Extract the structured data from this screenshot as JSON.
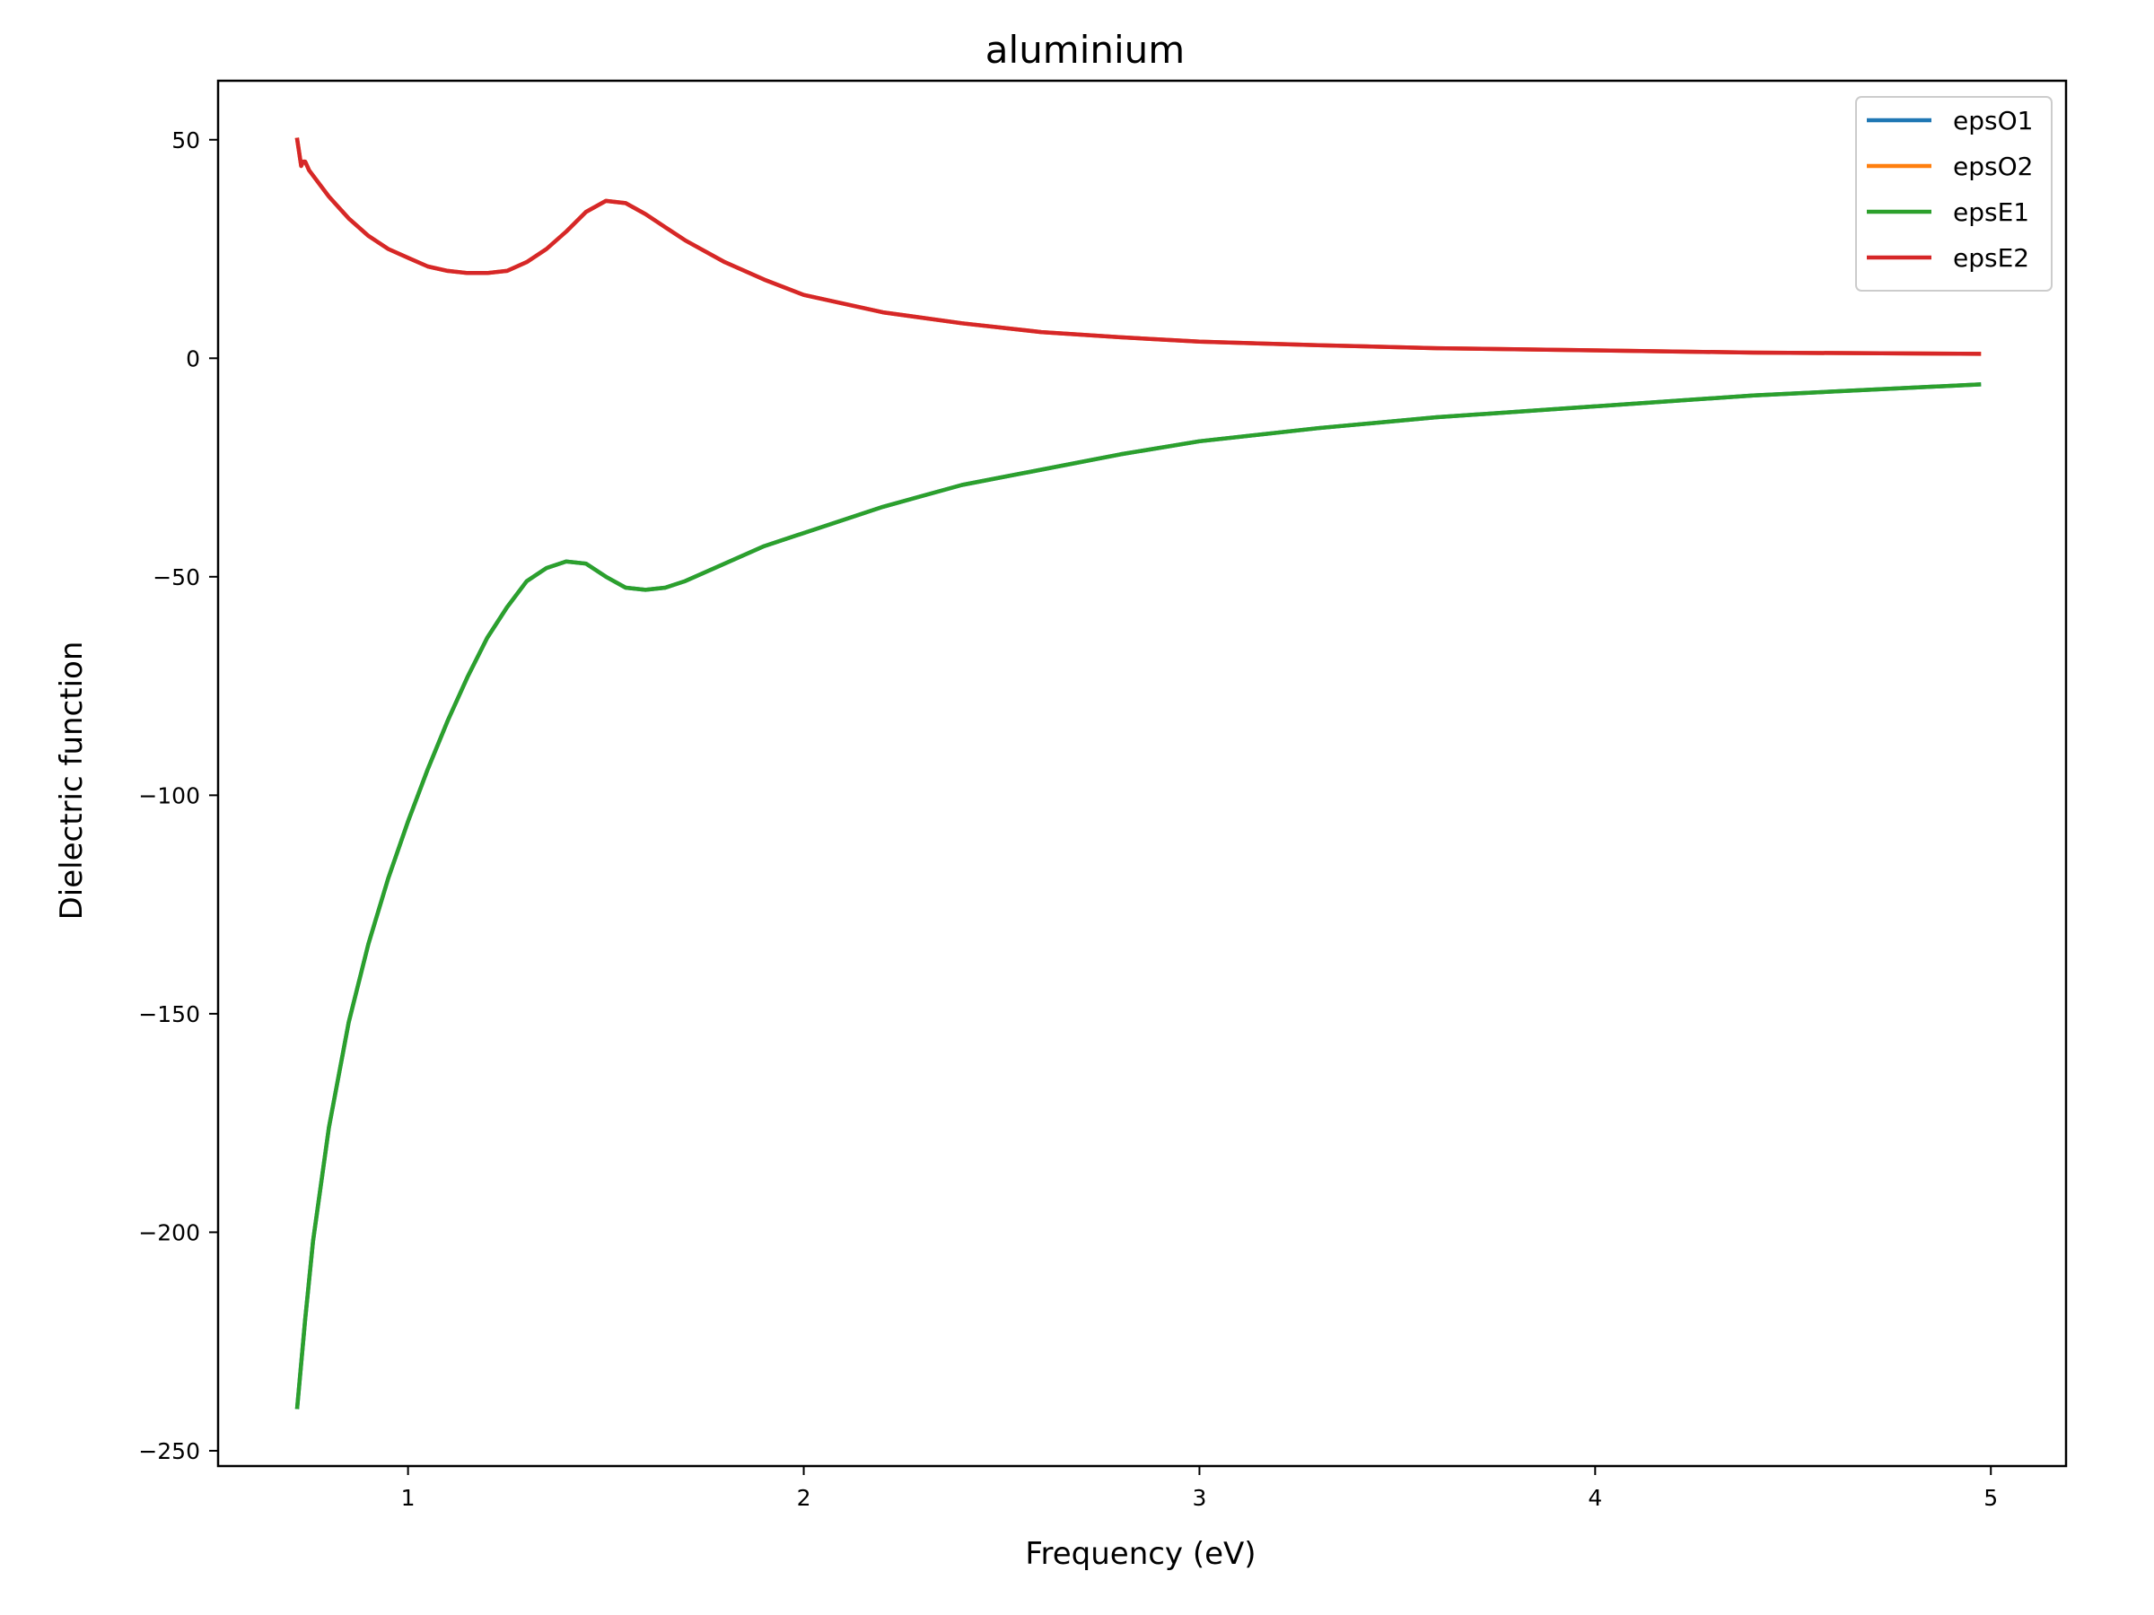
{
  "chart_data": {
    "type": "line",
    "title": "aluminium",
    "xlabel": "Frequency (eV)",
    "ylabel": "Dielectric function",
    "xlim": [
      0.52,
      5.19
    ],
    "ylim": [
      -253.5,
      63.5
    ],
    "xticks": [
      1,
      2,
      3,
      4,
      5
    ],
    "yticks": [
      50,
      0,
      -50,
      -100,
      -150,
      -200,
      -250
    ],
    "xtick_labels": [
      "1",
      "2",
      "3",
      "4",
      "5"
    ],
    "ytick_labels": [
      "50",
      "0",
      "−50",
      "−100",
      "−150",
      "−200",
      "−250"
    ],
    "grid": false,
    "legend_position": "top-right",
    "series": [
      {
        "name": "epsO1",
        "color": "#1f77b4",
        "x": [
          0.72,
          0.74,
          0.76,
          0.8,
          0.85,
          0.9,
          0.95,
          1.0,
          1.05,
          1.1,
          1.15,
          1.2,
          1.25,
          1.3,
          1.35,
          1.4,
          1.45,
          1.5,
          1.55,
          1.6,
          1.65,
          1.7,
          1.8,
          1.9,
          2.0,
          2.2,
          2.4,
          2.6,
          2.8,
          3.0,
          3.3,
          3.6,
          4.0,
          4.4,
          4.97
        ],
        "y": [
          -240,
          -220,
          -202,
          -176,
          -152,
          -134,
          -119,
          -106,
          -94,
          -83,
          -73,
          -64,
          -57,
          -51,
          -48,
          -46.5,
          -47,
          -50,
          -52.5,
          -53,
          -52.5,
          -51,
          -47,
          -43,
          -40,
          -34,
          -29,
          -25.5,
          -22,
          -19,
          -16,
          -13.5,
          -11,
          -8.5,
          -6
        ]
      },
      {
        "name": "epsO2",
        "color": "#ff7f0e",
        "x": [
          0.72,
          0.73,
          0.735,
          0.74,
          0.75,
          0.8,
          0.85,
          0.9,
          0.95,
          1.0,
          1.05,
          1.1,
          1.15,
          1.2,
          1.25,
          1.3,
          1.35,
          1.4,
          1.45,
          1.5,
          1.55,
          1.6,
          1.65,
          1.7,
          1.8,
          1.9,
          2.0,
          2.2,
          2.4,
          2.6,
          2.8,
          3.0,
          3.3,
          3.6,
          4.0,
          4.4,
          4.97
        ],
        "y": [
          50,
          44,
          45,
          45,
          43,
          37,
          32,
          28,
          25,
          23,
          21,
          20,
          19.5,
          19.5,
          20,
          22,
          25,
          29,
          33.5,
          36,
          35.5,
          33,
          30,
          27,
          22,
          18,
          14.5,
          10.5,
          8,
          6,
          4.8,
          3.8,
          3,
          2.3,
          1.8,
          1.3,
          1
        ]
      },
      {
        "name": "epsE1",
        "color": "#2ca02c",
        "x": [
          0.72,
          0.74,
          0.76,
          0.8,
          0.85,
          0.9,
          0.95,
          1.0,
          1.05,
          1.1,
          1.15,
          1.2,
          1.25,
          1.3,
          1.35,
          1.4,
          1.45,
          1.5,
          1.55,
          1.6,
          1.65,
          1.7,
          1.8,
          1.9,
          2.0,
          2.2,
          2.4,
          2.6,
          2.8,
          3.0,
          3.3,
          3.6,
          4.0,
          4.4,
          4.97
        ],
        "y": [
          -240,
          -220,
          -202,
          -176,
          -152,
          -134,
          -119,
          -106,
          -94,
          -83,
          -73,
          -64,
          -57,
          -51,
          -48,
          -46.5,
          -47,
          -50,
          -52.5,
          -53,
          -52.5,
          -51,
          -47,
          -43,
          -40,
          -34,
          -29,
          -25.5,
          -22,
          -19,
          -16,
          -13.5,
          -11,
          -8.5,
          -6
        ]
      },
      {
        "name": "epsE2",
        "color": "#d62728",
        "x": [
          0.72,
          0.73,
          0.735,
          0.74,
          0.75,
          0.8,
          0.85,
          0.9,
          0.95,
          1.0,
          1.05,
          1.1,
          1.15,
          1.2,
          1.25,
          1.3,
          1.35,
          1.4,
          1.45,
          1.5,
          1.55,
          1.6,
          1.65,
          1.7,
          1.8,
          1.9,
          2.0,
          2.2,
          2.4,
          2.6,
          2.8,
          3.0,
          3.3,
          3.6,
          4.0,
          4.4,
          4.97
        ],
        "y": [
          50,
          44,
          45,
          45,
          43,
          37,
          32,
          28,
          25,
          23,
          21,
          20,
          19.5,
          19.5,
          20,
          22,
          25,
          29,
          33.5,
          36,
          35.5,
          33,
          30,
          27,
          22,
          18,
          14.5,
          10.5,
          8,
          6,
          4.8,
          3.8,
          3,
          2.3,
          1.8,
          1.3,
          1
        ]
      }
    ]
  }
}
